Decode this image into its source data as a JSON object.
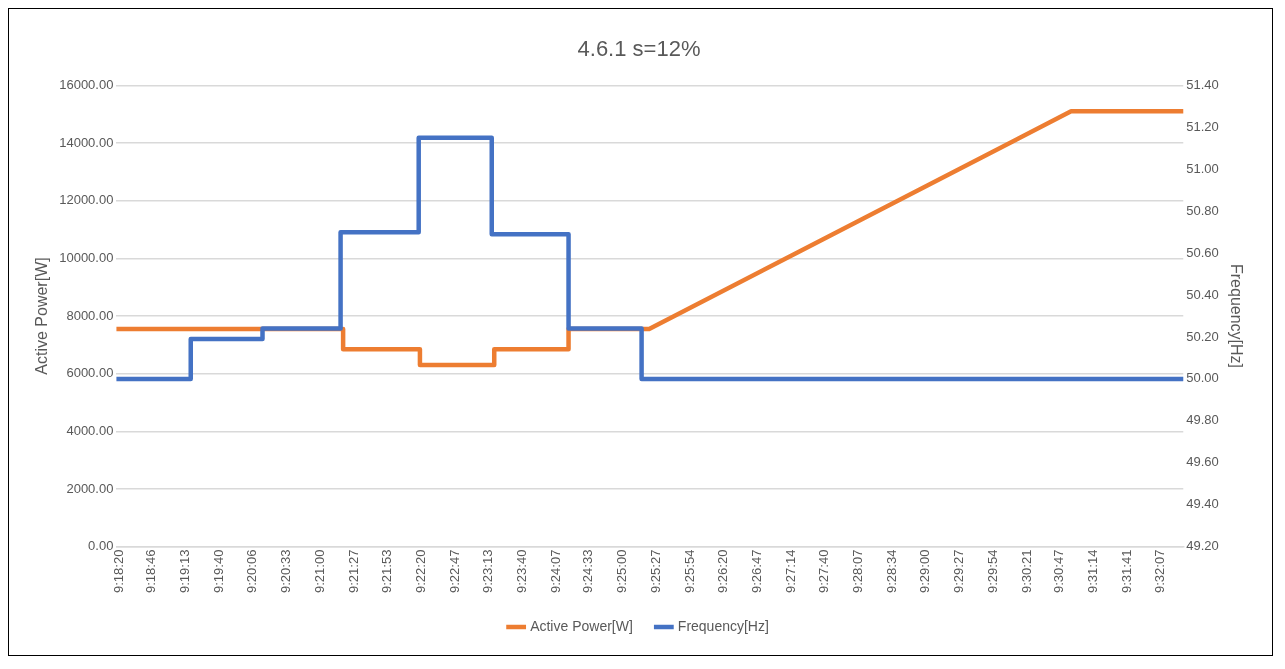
{
  "chart_data": {
    "type": "line",
    "title": "4.6.1 s=12%",
    "ylabel": "Active Power[W]",
    "y2label": "Frequency[Hz]",
    "xlim": [
      9.305,
      9.5403
    ],
    "xticks": [
      {
        "value": 9.30556,
        "label": "9:18:20"
      },
      {
        "value": 9.31278,
        "label": "9:18:46"
      },
      {
        "value": 9.32028,
        "label": "9:19:13"
      },
      {
        "value": 9.32778,
        "label": "9:19:40"
      },
      {
        "value": 9.335,
        "label": "9:20:06"
      },
      {
        "value": 9.3425,
        "label": "9:20:33"
      },
      {
        "value": 9.35,
        "label": "9:21:00"
      },
      {
        "value": 9.3575,
        "label": "9:21:27"
      },
      {
        "value": 9.36472,
        "label": "9:21:53"
      },
      {
        "value": 9.37222,
        "label": "9:22:20"
      },
      {
        "value": 9.37972,
        "label": "9:22:47"
      },
      {
        "value": 9.38694,
        "label": "9:23:13"
      },
      {
        "value": 9.39444,
        "label": "9:23:40"
      },
      {
        "value": 9.40194,
        "label": "9:24:07"
      },
      {
        "value": 9.40917,
        "label": "9:24:33"
      },
      {
        "value": 9.41667,
        "label": "9:25:00"
      },
      {
        "value": 9.42417,
        "label": "9:25:27"
      },
      {
        "value": 9.43167,
        "label": "9:25:54"
      },
      {
        "value": 9.43889,
        "label": "9:26:20"
      },
      {
        "value": 9.44639,
        "label": "9:26:47"
      },
      {
        "value": 9.45389,
        "label": "9:27:14"
      },
      {
        "value": 9.46111,
        "label": "9:27:40"
      },
      {
        "value": 9.46861,
        "label": "9:28:07"
      },
      {
        "value": 9.47611,
        "label": "9:28:34"
      },
      {
        "value": 9.48333,
        "label": "9:29:00"
      },
      {
        "value": 9.49083,
        "label": "9:29:27"
      },
      {
        "value": 9.49833,
        "label": "9:29:54"
      },
      {
        "value": 9.50583,
        "label": "9:30:21"
      },
      {
        "value": 9.51306,
        "label": "9:30:47"
      },
      {
        "value": 9.52056,
        "label": "9:31:14"
      },
      {
        "value": 9.52806,
        "label": "9:31:41"
      },
      {
        "value": 9.53528,
        "label": "9:32:07"
      }
    ],
    "ylim": [
      0,
      16000
    ],
    "yticks": [
      {
        "value": 0,
        "label": "0.00"
      },
      {
        "value": 2000,
        "label": "2000.00"
      },
      {
        "value": 4000,
        "label": "4000.00"
      },
      {
        "value": 6000,
        "label": "6000.00"
      },
      {
        "value": 8000,
        "label": "8000.00"
      },
      {
        "value": 10000,
        "label": "10000.00"
      },
      {
        "value": 12000,
        "label": "12000.00"
      },
      {
        "value": 14000,
        "label": "14000.00"
      },
      {
        "value": 16000,
        "label": "16000.00"
      }
    ],
    "y2lim": [
      49.2,
      51.4
    ],
    "y2ticks": [
      {
        "value": 49.2,
        "label": "49.20"
      },
      {
        "value": 49.4,
        "label": "49.40"
      },
      {
        "value": 49.6,
        "label": "49.60"
      },
      {
        "value": 49.8,
        "label": "49.80"
      },
      {
        "value": 50,
        "label": "50.00"
      },
      {
        "value": 50.2,
        "label": "50.20"
      },
      {
        "value": 50.4,
        "label": "50.40"
      },
      {
        "value": 50.6,
        "label": "50.60"
      },
      {
        "value": 50.8,
        "label": "50.80"
      },
      {
        "value": 51,
        "label": "51.00"
      },
      {
        "value": 51.2,
        "label": "51.20"
      },
      {
        "value": 51.4,
        "label": "51.40"
      }
    ],
    "grid": "y",
    "legend": "bottom",
    "marker": "none",
    "line_style": "solid",
    "series": [
      {
        "name": "Active Power[W]",
        "color": "#ed7d31",
        "x": [
          9.305,
          9.355,
          9.355,
          9.37194,
          9.37194,
          9.38833,
          9.38833,
          9.40472,
          9.40472,
          9.4225,
          9.51556,
          9.54028
        ],
        "values": [
          7550,
          7550,
          6850,
          6850,
          6300,
          6300,
          6850,
          6850,
          7550,
          7550,
          15100,
          15100
        ]
      },
      {
        "name": "Frequency[Hz]",
        "color": "#4472c4",
        "axis": "y2",
        "x": [
          9.305,
          9.32139,
          9.32139,
          9.33722,
          9.33722,
          9.35444,
          9.35444,
          9.37167,
          9.37167,
          9.38778,
          9.38778,
          9.40472,
          9.40472,
          9.42083,
          9.42083,
          9.54028
        ],
        "values": [
          50.0,
          50.0,
          50.19,
          50.19,
          50.24,
          50.24,
          50.7,
          50.7,
          51.15,
          51.15,
          50.69,
          50.69,
          50.24,
          50.24,
          50.0,
          50.0
        ]
      }
    ]
  }
}
